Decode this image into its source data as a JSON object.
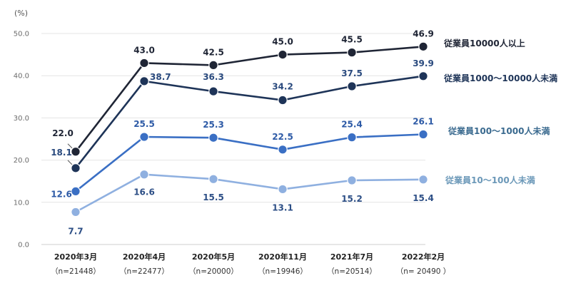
{
  "chart_data": {
    "type": "line",
    "unit_label": "(%)",
    "ylim": [
      0,
      50
    ],
    "yticks": [
      "0.0",
      "10.0",
      "20.0",
      "30.0",
      "40.0",
      "50.0"
    ],
    "grid": true,
    "categories": [
      "2020年3月",
      "2020年4月",
      "2020年5月",
      "2020年11月",
      "2021年7月",
      "2022年2月"
    ],
    "category_notes": [
      "（n=21448）",
      "（n=22477）",
      "（n=20000）",
      "（n=19946）",
      "（n=20514）",
      "（n= 20490 ）"
    ],
    "series": [
      {
        "name": "従業員10000人以上",
        "color": "#1f2535",
        "label_color": "#1f2535",
        "legend_color": "#1f2535",
        "values": [
          22.0,
          43.0,
          42.5,
          45.0,
          45.5,
          46.9
        ],
        "labels": [
          "22.0",
          "43.0",
          "42.5",
          "45.0",
          "45.5",
          "46.9"
        ]
      },
      {
        "name": "従業員1000～10000人未満",
        "color": "#1e3458",
        "label_color": "#2a4a7e",
        "legend_color": "#1e3458",
        "values": [
          18.1,
          38.7,
          36.3,
          34.2,
          37.5,
          39.9
        ],
        "labels": [
          "18.1",
          "38.7",
          "36.3",
          "34.2",
          "37.5",
          "39.9"
        ]
      },
      {
        "name": "従業員100～1000人未満",
        "color": "#3a6fc4",
        "label_color": "#2d5aa6",
        "legend_color": "#3a6a8f",
        "values": [
          12.6,
          25.5,
          25.3,
          22.5,
          25.4,
          26.1
        ],
        "labels": [
          "12.6",
          "25.5",
          "25.3",
          "22.5",
          "25.4",
          "26.1"
        ]
      },
      {
        "name": "従業員10～100人未満",
        "color": "#8fb0e0",
        "label_color": "#2d4f86",
        "legend_color": "#6b98b8",
        "values": [
          7.7,
          16.6,
          15.5,
          13.1,
          15.2,
          15.4
        ],
        "labels": [
          "7.7",
          "16.6",
          "15.5",
          "13.1",
          "15.2",
          "15.4"
        ]
      }
    ]
  }
}
